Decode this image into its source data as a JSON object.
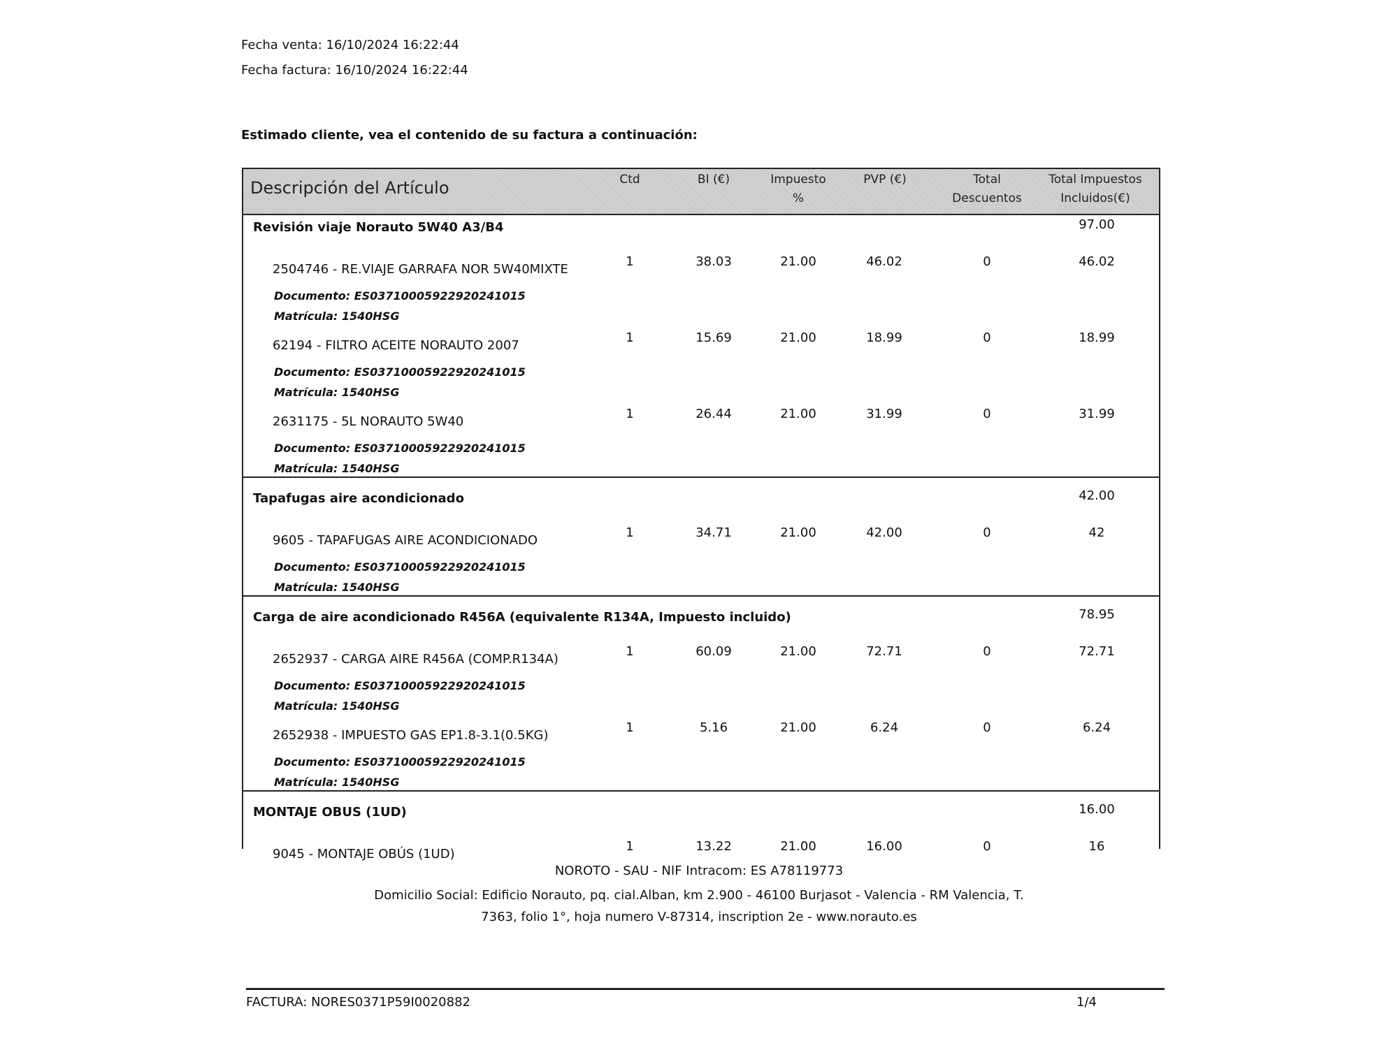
{
  "header": {
    "fecha_venta": "Fecha venta: 16/10/2024 16:22:44",
    "fecha_factura": "Fecha factura: 16/10/2024 16:22:44",
    "intro": "Estimado cliente, vea el contenido de su factura a continuación:"
  },
  "table": {
    "columns": [
      "Descripción del Artículo",
      "Ctd",
      "BI (€)",
      "Impuesto %",
      "PVP (€)",
      "Total Descuentos",
      "Total Impuestos Incluidos(€)"
    ],
    "groups": [
      {
        "title": "Revisión viaje Norauto 5W40 A3/B4",
        "total": "97.00",
        "items": [
          {
            "desc": "2504746 - RE.VIAJE GARRAFA NOR 5W40MIXTE",
            "ctd": "1",
            "bi": "38.03",
            "imp": "21.00",
            "pvp": "46.02",
            "desc_total": "0",
            "total": "46.02",
            "documento": "Documento: ES03710005922920241015",
            "matricula": "Matrícula: 1540HSG"
          },
          {
            "desc": "62194 - FILTRO ACEITE NORAUTO 2007",
            "ctd": "1",
            "bi": "15.69",
            "imp": "21.00",
            "pvp": "18.99",
            "desc_total": "0",
            "total": "18.99",
            "documento": "Documento: ES03710005922920241015",
            "matricula": "Matrícula: 1540HSG"
          },
          {
            "desc": "2631175 - 5L NORAUTO 5W40",
            "ctd": "1",
            "bi": "26.44",
            "imp": "21.00",
            "pvp": "31.99",
            "desc_total": "0",
            "total": "31.99",
            "documento": "Documento: ES03710005922920241015",
            "matricula": "Matrícula: 1540HSG"
          }
        ]
      },
      {
        "title": "Tapafugas aire acondicionado",
        "total": "42.00",
        "items": [
          {
            "desc": "9605 - TAPAFUGAS AIRE ACONDICIONADO",
            "ctd": "1",
            "bi": "34.71",
            "imp": "21.00",
            "pvp": "42.00",
            "desc_total": "0",
            "total": "42",
            "documento": "Documento: ES03710005922920241015",
            "matricula": "Matrícula: 1540HSG"
          }
        ]
      },
      {
        "title": "Carga de aire acondicionado R456A (equivalente R134A, Impuesto incluido)",
        "total": "78.95",
        "items": [
          {
            "desc": "2652937 - CARGA AIRE R456A (COMP.R134A)",
            "ctd": "1",
            "bi": "60.09",
            "imp": "21.00",
            "pvp": "72.71",
            "desc_total": "0",
            "total": "72.71",
            "documento": "Documento: ES03710005922920241015",
            "matricula": "Matrícula: 1540HSG"
          },
          {
            "desc": "2652938 - IMPUESTO GAS EP1.8-3.1(0.5KG)",
            "ctd": "1",
            "bi": "5.16",
            "imp": "21.00",
            "pvp": "6.24",
            "desc_total": "0",
            "total": "6.24",
            "documento": "Documento: ES03710005922920241015",
            "matricula": "Matrícula: 1540HSG"
          }
        ]
      },
      {
        "title": "MONTAJE OBUS (1UD)",
        "total": "16.00",
        "items": [
          {
            "desc": "9045 - MONTAJE OBÚS (1UD)",
            "ctd": "1",
            "bi": "13.22",
            "imp": "21.00",
            "pvp": "16.00",
            "desc_total": "0",
            "total": "16"
          }
        ]
      }
    ]
  },
  "footer": {
    "company": "NOROTO  - SAU - NIF Intracom: ES A78119773",
    "address1": "Domicilio Social: Edificio Norauto, pq. cial.Alban, km 2.900 - 46100 Burjasot - Valencia - RM Valencia, T.",
    "address2": "7363, folio 1°, hoja numero V-87314, inscription 2e - www.norauto.es",
    "invoice": "FACTURA: NORES0371P59I0020882",
    "page": "1/4"
  }
}
